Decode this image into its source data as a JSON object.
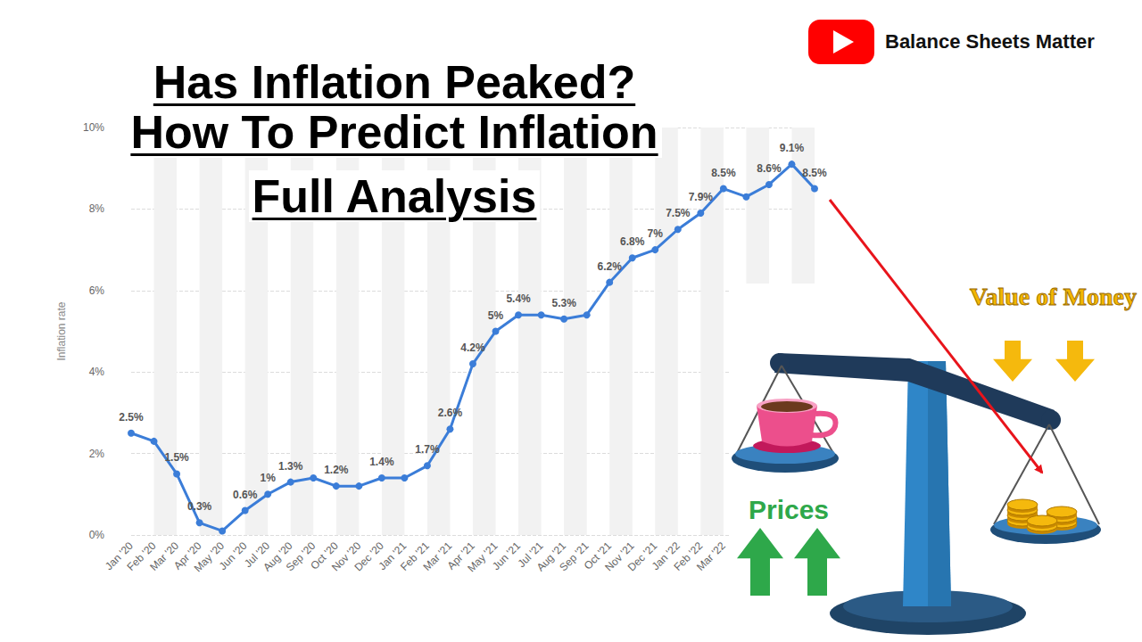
{
  "chart_data": {
    "type": "line",
    "title": "Has Inflation Peaked?",
    "subtitle": [
      "How To Predict Inflation",
      "Full Analysis"
    ],
    "y_label": "Inflation rate",
    "categories": [
      "Jan '20",
      "Feb '20",
      "Mar '20",
      "Apr '20",
      "May '20",
      "Jun '20",
      "Jul '20",
      "Aug '20",
      "Sep '20",
      "Oct '20",
      "Nov '20",
      "Dec '20",
      "Jan '21",
      "Feb '21",
      "Mar '21",
      "Apr '21",
      "May '21",
      "Jun '21",
      "Jul '21",
      "Aug '21",
      "Sep '21",
      "Oct '21",
      "Nov '21",
      "Dec '21",
      "Jan '22",
      "Feb '22",
      "Mar '22",
      null,
      null,
      null,
      null
    ],
    "values": [
      2.5,
      2.3,
      1.5,
      0.3,
      0.1,
      0.6,
      1.0,
      1.3,
      1.4,
      1.2,
      1.2,
      1.4,
      1.4,
      1.7,
      2.6,
      4.2,
      5.0,
      5.4,
      5.4,
      5.3,
      5.4,
      6.2,
      6.8,
      7.0,
      7.5,
      7.9,
      8.5,
      8.3,
      8.6,
      9.1,
      8.5
    ],
    "value_labels": [
      "2.5%",
      null,
      "1.5%",
      "0.3%",
      null,
      "0.6%",
      "1%",
      "1.3%",
      null,
      "1.2%",
      null,
      "1.4%",
      null,
      "1.7%",
      "2.6%",
      "4.2%",
      "5%",
      "5.4%",
      null,
      "5.3%",
      null,
      "6.2%",
      "6.8%",
      "7%",
      "7.5%",
      "7.9%",
      "8.5%",
      null,
      "8.6%",
      "9.1%",
      "8.5%"
    ],
    "data_labels": true,
    "color": "#3b7dd8",
    "marker": "circle",
    "ylim": [
      0,
      10
    ],
    "yticks": [
      {
        "value": 0,
        "label": "0%"
      },
      {
        "value": 2,
        "label": "2%"
      },
      {
        "value": 4,
        "label": "4%"
      },
      {
        "value": 6,
        "label": "6%"
      },
      {
        "value": 8,
        "label": "8%"
      },
      {
        "value": 10,
        "label": "10%"
      }
    ],
    "grid": true,
    "annotations": [
      "Balance Sheets Matter",
      "Value of Money",
      "Prices"
    ]
  }
}
